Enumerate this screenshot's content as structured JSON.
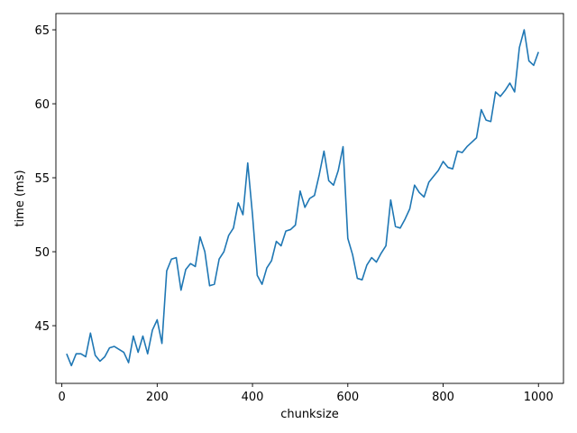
{
  "chart_data": {
    "type": "line",
    "title": "",
    "xlabel": "chunksize",
    "ylabel": "time (ms)",
    "xlim": [
      -12.5,
      1052.5
    ],
    "ylim": [
      41.1,
      66.1
    ],
    "xticks": [
      0,
      200,
      400,
      600,
      800,
      1000
    ],
    "yticks": [
      45,
      50,
      55,
      60,
      65
    ],
    "grid": false,
    "legend": "none",
    "colors": {
      "line": "#1f77b4",
      "axis": "#000000",
      "background": "#ffffff"
    },
    "series": [
      {
        "name": "time",
        "x": [
          10,
          20,
          30,
          40,
          50,
          60,
          70,
          80,
          90,
          100,
          110,
          120,
          130,
          140,
          150,
          160,
          170,
          180,
          190,
          200,
          210,
          220,
          230,
          240,
          250,
          260,
          270,
          280,
          290,
          300,
          310,
          320,
          330,
          340,
          350,
          360,
          370,
          380,
          390,
          400,
          410,
          420,
          430,
          440,
          450,
          460,
          470,
          480,
          490,
          500,
          510,
          520,
          530,
          540,
          550,
          560,
          570,
          580,
          590,
          600,
          610,
          620,
          630,
          640,
          650,
          660,
          670,
          680,
          690,
          700,
          710,
          720,
          730,
          740,
          750,
          760,
          770,
          780,
          790,
          800,
          810,
          820,
          830,
          840,
          850,
          860,
          870,
          880,
          890,
          900,
          910,
          920,
          930,
          940,
          950,
          960,
          970,
          980,
          990,
          1000
        ],
        "values": [
          43.1,
          42.3,
          43.1,
          43.1,
          42.9,
          44.5,
          43.0,
          42.6,
          42.9,
          43.5,
          43.6,
          43.4,
          43.2,
          42.5,
          44.3,
          43.2,
          44.3,
          43.1,
          44.7,
          45.4,
          43.8,
          48.7,
          49.5,
          49.6,
          47.4,
          48.8,
          49.2,
          49.0,
          51.0,
          50.0,
          47.7,
          47.8,
          49.5,
          50.0,
          51.1,
          51.6,
          53.3,
          52.5,
          56.0,
          52.5,
          48.4,
          47.8,
          48.9,
          49.4,
          50.7,
          50.4,
          51.4,
          51.5,
          51.8,
          54.1,
          53.0,
          53.6,
          53.8,
          55.2,
          56.8,
          54.8,
          54.5,
          55.5,
          57.1,
          50.9,
          49.8,
          48.2,
          48.1,
          49.1,
          49.6,
          49.3,
          49.9,
          50.4,
          53.5,
          51.7,
          51.6,
          52.2,
          52.9,
          54.5,
          54.0,
          53.7,
          54.7,
          55.1,
          55.5,
          56.1,
          55.7,
          55.6,
          56.8,
          56.7,
          57.1,
          57.4,
          57.7,
          59.6,
          58.9,
          58.8,
          60.8,
          60.5,
          60.9,
          61.4,
          60.8,
          63.8,
          65.0,
          62.9,
          62.6,
          63.5
        ]
      }
    ]
  }
}
